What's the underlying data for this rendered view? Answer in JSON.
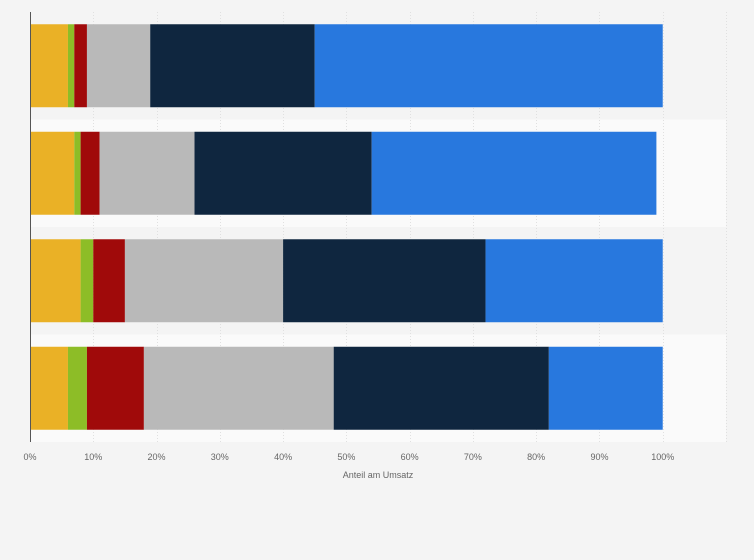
{
  "chart_data": {
    "type": "bar",
    "orientation": "horizontal",
    "stacked": true,
    "categories": [
      "",
      "",
      "",
      ""
    ],
    "series": [
      {
        "color": "#eab126",
        "values": [
          6,
          7,
          8,
          6
        ]
      },
      {
        "color": "#8dbd27",
        "values": [
          1,
          1,
          2,
          3
        ]
      },
      {
        "color": "#a00a0a",
        "values": [
          2,
          3,
          5,
          9
        ]
      },
      {
        "color": "#b9b9b9",
        "values": [
          10,
          15,
          25,
          30
        ]
      },
      {
        "color": "#0f263f",
        "values": [
          26,
          28,
          32,
          34
        ]
      },
      {
        "color": "#2878de",
        "values": [
          55,
          45,
          28,
          18
        ]
      }
    ],
    "xlabel": "Anteil am Umsatz",
    "ylabel": "",
    "xlim": [
      0,
      100
    ],
    "xticks": [
      "0%",
      "10%",
      "20%",
      "30%",
      "40%",
      "50%",
      "60%",
      "70%",
      "80%",
      "90%",
      "100%"
    ],
    "grid": true,
    "legend": "none"
  }
}
